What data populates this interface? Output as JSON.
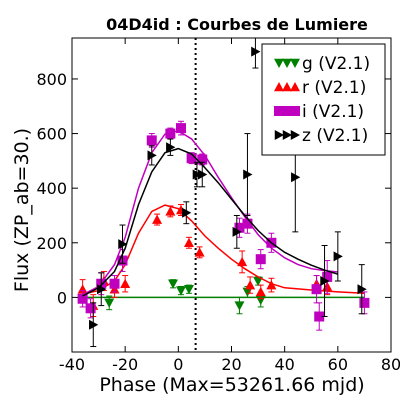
{
  "chart_data": {
    "type": "scatter",
    "title": "04D4id : Courbes de Lumiere",
    "xlabel": "Phase (Max=53261.66 mjd)",
    "ylabel": "Flux (ZP_ab=30.)",
    "xlim": [
      -40,
      80
    ],
    "ylim": [
      -200,
      950
    ],
    "xticks": [
      -40,
      -20,
      0,
      20,
      40,
      60,
      80
    ],
    "yticks": [
      0,
      200,
      400,
      600,
      800
    ],
    "max_phase_line": 6.5,
    "legend_position": "top-right",
    "series": [
      {
        "name": "g (V2.1)",
        "marker": "triangle-down",
        "color": "#008000",
        "points": [
          {
            "x": 30,
            "y": 60,
            "err": 15
          },
          {
            "x": -2,
            "y": 50,
            "err": 15
          },
          {
            "x": 1,
            "y": 25,
            "err": 15
          },
          {
            "x": 4,
            "y": 30,
            "err": 15
          },
          {
            "x": 23,
            "y": -30,
            "err": 30
          },
          {
            "x": 26,
            "y": 20,
            "err": 20
          },
          {
            "x": 31,
            "y": -10,
            "err": 25
          },
          {
            "x": -26,
            "y": -20,
            "err": 25
          }
        ],
        "curve": [
          [
            -35,
            0
          ],
          [
            20,
            0
          ],
          [
            45,
            0
          ],
          [
            70,
            0
          ]
        ]
      },
      {
        "name": "r (V2.1)",
        "marker": "triangle-up",
        "color": "#ff0000",
        "points": [
          {
            "x": -36,
            "y": 30,
            "err": 35
          },
          {
            "x": -32,
            "y": -30,
            "err": 40
          },
          {
            "x": -28,
            "y": 60,
            "err": 35
          },
          {
            "x": -24,
            "y": 30,
            "err": 30
          },
          {
            "x": -20,
            "y": 50,
            "err": 30
          },
          {
            "x": -8,
            "y": 285,
            "err": 20
          },
          {
            "x": -3,
            "y": 315,
            "err": 20
          },
          {
            "x": 1,
            "y": 320,
            "err": 20
          },
          {
            "x": 4,
            "y": 200,
            "err": 20
          },
          {
            "x": 8,
            "y": 165,
            "err": 20
          },
          {
            "x": 24,
            "y": 130,
            "err": 40
          },
          {
            "x": 27,
            "y": 45,
            "err": 30
          },
          {
            "x": 31,
            "y": 20,
            "err": 25
          },
          {
            "x": 35,
            "y": 45,
            "err": 25
          },
          {
            "x": 52,
            "y": 50,
            "err": 30
          },
          {
            "x": 56,
            "y": 40,
            "err": 30
          }
        ],
        "curve": [
          [
            -36,
            12
          ],
          [
            -30,
            25
          ],
          [
            -24,
            60
          ],
          [
            -20,
            120
          ],
          [
            -15,
            235
          ],
          [
            -10,
            315
          ],
          [
            -5,
            338
          ],
          [
            0,
            325
          ],
          [
            5,
            280
          ],
          [
            10,
            225
          ],
          [
            15,
            180
          ],
          [
            20,
            140
          ],
          [
            25,
            105
          ],
          [
            30,
            75
          ],
          [
            35,
            50
          ],
          [
            40,
            35
          ],
          [
            50,
            27
          ],
          [
            60,
            20
          ],
          [
            70,
            15
          ]
        ]
      },
      {
        "name": "i (V2.1)",
        "marker": "square",
        "color": "#bf00bf",
        "points": [
          {
            "x": -36,
            "y": -5,
            "err": 30
          },
          {
            "x": -33,
            "y": -40,
            "err": 35
          },
          {
            "x": -29,
            "y": 50,
            "err": 40
          },
          {
            "x": -24,
            "y": 50,
            "err": 30
          },
          {
            "x": -21,
            "y": 135,
            "err": 40
          },
          {
            "x": -10,
            "y": 575,
            "err": 25
          },
          {
            "x": -3,
            "y": 600,
            "err": 20
          },
          {
            "x": 1,
            "y": 620,
            "err": 25
          },
          {
            "x": 5,
            "y": 510,
            "err": 20
          },
          {
            "x": 9,
            "y": 505,
            "err": 20
          },
          {
            "x": 23,
            "y": 255,
            "err": 35
          },
          {
            "x": 26,
            "y": 270,
            "err": 35
          },
          {
            "x": 31,
            "y": 140,
            "err": 35
          },
          {
            "x": 35,
            "y": 200,
            "err": 35
          },
          {
            "x": 52,
            "y": 30,
            "err": 50
          },
          {
            "x": 53,
            "y": -70,
            "err": 50
          },
          {
            "x": 56,
            "y": 75,
            "err": 60
          },
          {
            "x": 70,
            "y": -20,
            "err": 40
          }
        ],
        "curve": [
          [
            -36,
            10
          ],
          [
            -30,
            40
          ],
          [
            -24,
            120
          ],
          [
            -20,
            220
          ],
          [
            -15,
            400
          ],
          [
            -10,
            530
          ],
          [
            -5,
            598
          ],
          [
            0,
            610
          ],
          [
            5,
            580
          ],
          [
            10,
            520
          ],
          [
            15,
            440
          ],
          [
            20,
            365
          ],
          [
            25,
            295
          ],
          [
            30,
            230
          ],
          [
            35,
            180
          ],
          [
            40,
            145
          ],
          [
            45,
            120
          ],
          [
            50,
            105
          ],
          [
            55,
            98
          ],
          [
            60,
            93
          ]
        ]
      },
      {
        "name": "z (V2.1)",
        "marker": "triangle-right",
        "color": "#000000",
        "points": [
          {
            "x": -32,
            "y": -100,
            "err": 80
          },
          {
            "x": -29,
            "y": 30,
            "err": 60
          },
          {
            "x": -21,
            "y": 195,
            "err": 70
          },
          {
            "x": -10,
            "y": 520,
            "err": 35
          },
          {
            "x": -3,
            "y": 550,
            "err": 30
          },
          {
            "x": 3,
            "y": 310,
            "err": 40
          },
          {
            "x": 7,
            "y": 450,
            "err": 45
          },
          {
            "x": 9,
            "y": 450,
            "err": 45
          },
          {
            "x": 22,
            "y": 240,
            "err": 60
          },
          {
            "x": 26,
            "y": 450,
            "err": 150
          },
          {
            "x": 29,
            "y": 900,
            "err": 60
          },
          {
            "x": 44,
            "y": 440,
            "err": 200
          },
          {
            "x": 55,
            "y": 60,
            "err": 130
          },
          {
            "x": 60,
            "y": 150,
            "err": 90
          },
          {
            "x": 69,
            "y": 30,
            "err": 90
          }
        ],
        "curve": [
          [
            -36,
            5
          ],
          [
            -30,
            35
          ],
          [
            -24,
            95
          ],
          [
            -20,
            180
          ],
          [
            -15,
            340
          ],
          [
            -10,
            460
          ],
          [
            -5,
            530
          ],
          [
            0,
            545
          ],
          [
            5,
            525
          ],
          [
            10,
            475
          ],
          [
            15,
            420
          ],
          [
            20,
            360
          ],
          [
            25,
            300
          ],
          [
            30,
            245
          ],
          [
            35,
            200
          ],
          [
            40,
            165
          ],
          [
            45,
            140
          ],
          [
            50,
            118
          ],
          [
            55,
            100
          ],
          [
            60,
            85
          ]
        ]
      }
    ]
  }
}
